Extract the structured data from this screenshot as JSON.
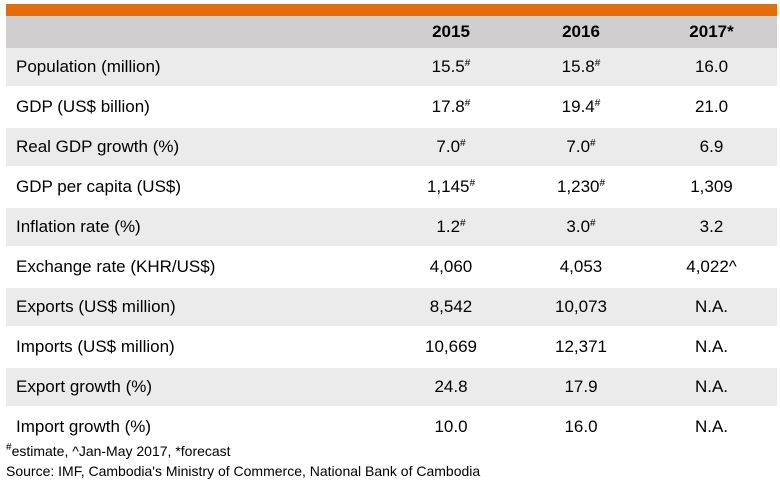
{
  "header": {
    "col0": "",
    "col1": "2015",
    "col2": "2016",
    "col3": "2017*"
  },
  "rows": [
    {
      "label": "Population (million)",
      "v2015": "15.5",
      "s2015": "#",
      "v2016": "15.8",
      "s2016": "#",
      "v2017": "16.0",
      "s2017": ""
    },
    {
      "label": "GDP (US$ billion)",
      "v2015": "17.8",
      "s2015": "#",
      "v2016": "19.4",
      "s2016": "#",
      "v2017": "21.0",
      "s2017": ""
    },
    {
      "label": "Real GDP growth (%)",
      "v2015": "7.0",
      "s2015": "#",
      "v2016": "7.0",
      "s2016": "#",
      "v2017": "6.9",
      "s2017": ""
    },
    {
      "label": "GDP per capita (US$)",
      "v2015": "1,145",
      "s2015": "#",
      "v2016": "1,230",
      "s2016": "#",
      "v2017": "1,309",
      "s2017": ""
    },
    {
      "label": "Inflation rate (%)",
      "v2015": "1.2",
      "s2015": "#",
      "v2016": "3.0",
      "s2016": "#",
      "v2017": "3.2",
      "s2017": ""
    },
    {
      "label": "Exchange rate (KHR/US$)",
      "v2015": "4,060",
      "s2015": "",
      "v2016": "4,053",
      "s2016": "",
      "v2017": "4,022^",
      "s2017": ""
    },
    {
      "label": "Exports (US$ million)",
      "v2015": "8,542",
      "s2015": "",
      "v2016": "10,073",
      "s2016": "",
      "v2017": "N.A.",
      "s2017": ""
    },
    {
      "label": "Imports (US$ million)",
      "v2015": "10,669",
      "s2015": "",
      "v2016": "12,371",
      "s2016": "",
      "v2017": "N.A.",
      "s2017": ""
    },
    {
      "label": "Export growth (%)",
      "v2015": "24.8",
      "s2015": "",
      "v2016": "17.9",
      "s2016": "",
      "v2017": "N.A.",
      "s2017": ""
    },
    {
      "label": "Import growth (%)",
      "v2015": "10.0",
      "s2015": "",
      "v2016": "16.0",
      "s2016": "",
      "v2017": "N.A.",
      "s2017": ""
    }
  ],
  "notes": {
    "estimate_mark": "#",
    "line1": "estimate, ^Jan-May 2017, *forecast",
    "line2": "Source: IMF, Cambodia's Ministry of Commerce, National Bank of Cambodia"
  },
  "colors": {
    "accent_bar": "#e46c0a",
    "header_bg": "#d0cece",
    "shade_bg": "#ebebeb"
  }
}
